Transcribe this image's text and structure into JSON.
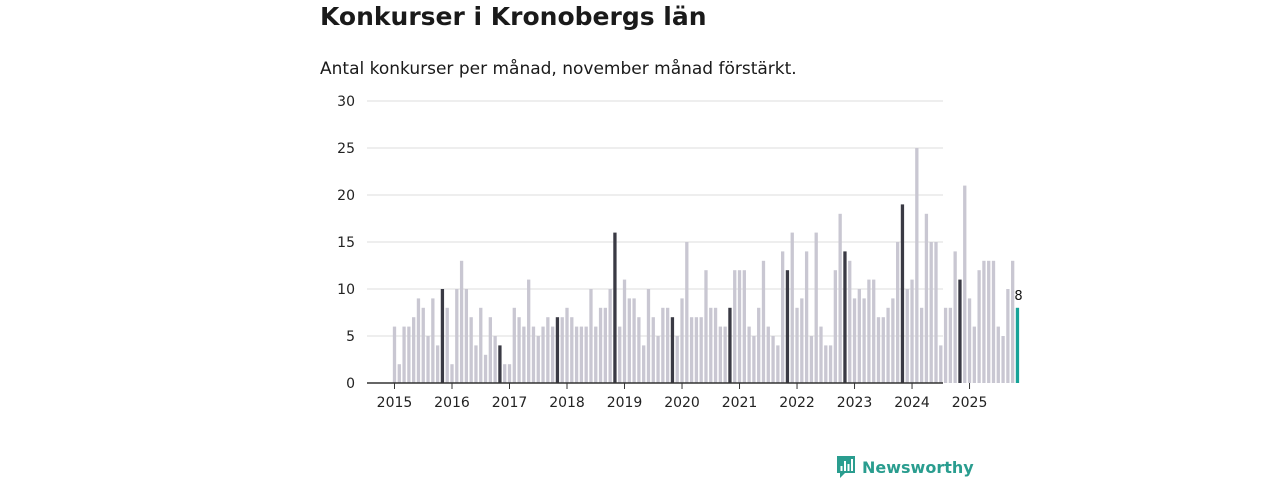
{
  "title": "Konkurser i Kronobergs län",
  "subtitle": "Antal konkurser per månad, november månad förstärkt.",
  "brand": {
    "name": "Newsworthy",
    "icon": "bar-chart-speech-icon"
  },
  "colors": {
    "regular": "#c9c7d2",
    "highlight": "#3a3a44",
    "latest": "#17a398",
    "grid": "#dddddd",
    "axis": "#333333",
    "brand": "#2a9d8f"
  },
  "chart_data": {
    "type": "bar",
    "title": "Konkurser i Kronobergs län",
    "subtitle": "Antal konkurser per månad, november månad förstärkt.",
    "xlabel": "",
    "ylabel": "",
    "ylim": [
      0,
      30
    ],
    "yticks": [
      0,
      5,
      10,
      15,
      20,
      25,
      30
    ],
    "start": "2015-01",
    "grid": true,
    "highlight_month": "november",
    "x_tick_labels": [
      "2015",
      "2016",
      "2017",
      "2018",
      "2019",
      "2020",
      "2021",
      "2022",
      "2023",
      "2024",
      "2025"
    ],
    "years": [
      {
        "year": "2015",
        "values": [
          6,
          2,
          6,
          6,
          7,
          9,
          8,
          5,
          9,
          4,
          10,
          8
        ]
      },
      {
        "year": "2016",
        "values": [
          2,
          10,
          13,
          10,
          7,
          4,
          8,
          3,
          7,
          5,
          4,
          2
        ]
      },
      {
        "year": "2017",
        "values": [
          2,
          8,
          7,
          6,
          11,
          6,
          5,
          6,
          7,
          6,
          7,
          7
        ]
      },
      {
        "year": "2018",
        "values": [
          8,
          7,
          6,
          6,
          6,
          10,
          6,
          8,
          8,
          10,
          16,
          6
        ]
      },
      {
        "year": "2019",
        "values": [
          11,
          9,
          9,
          7,
          4,
          10,
          7,
          5,
          8,
          8,
          7,
          5
        ]
      },
      {
        "year": "2020",
        "values": [
          9,
          15,
          7,
          7,
          7,
          12,
          8,
          8,
          6,
          6,
          8,
          12
        ]
      },
      {
        "year": "2021",
        "values": [
          12,
          12,
          6,
          5,
          8,
          13,
          6,
          5,
          4,
          14,
          12,
          16
        ]
      },
      {
        "year": "2022",
        "values": [
          8,
          9,
          14,
          5,
          16,
          6,
          4,
          4,
          12,
          18,
          14,
          13
        ]
      },
      {
        "year": "2023",
        "values": [
          9,
          10,
          9,
          11,
          11,
          7,
          7,
          8,
          9,
          15,
          19,
          10
        ]
      },
      {
        "year": "2024",
        "values": [
          11,
          25,
          8,
          18,
          15,
          15,
          4,
          8,
          8,
          14,
          11,
          21
        ]
      },
      {
        "year": "2025",
        "values": [
          9,
          6,
          12,
          13,
          13,
          13,
          6,
          5,
          10,
          13,
          8
        ]
      }
    ],
    "latest_value_label": "8"
  }
}
